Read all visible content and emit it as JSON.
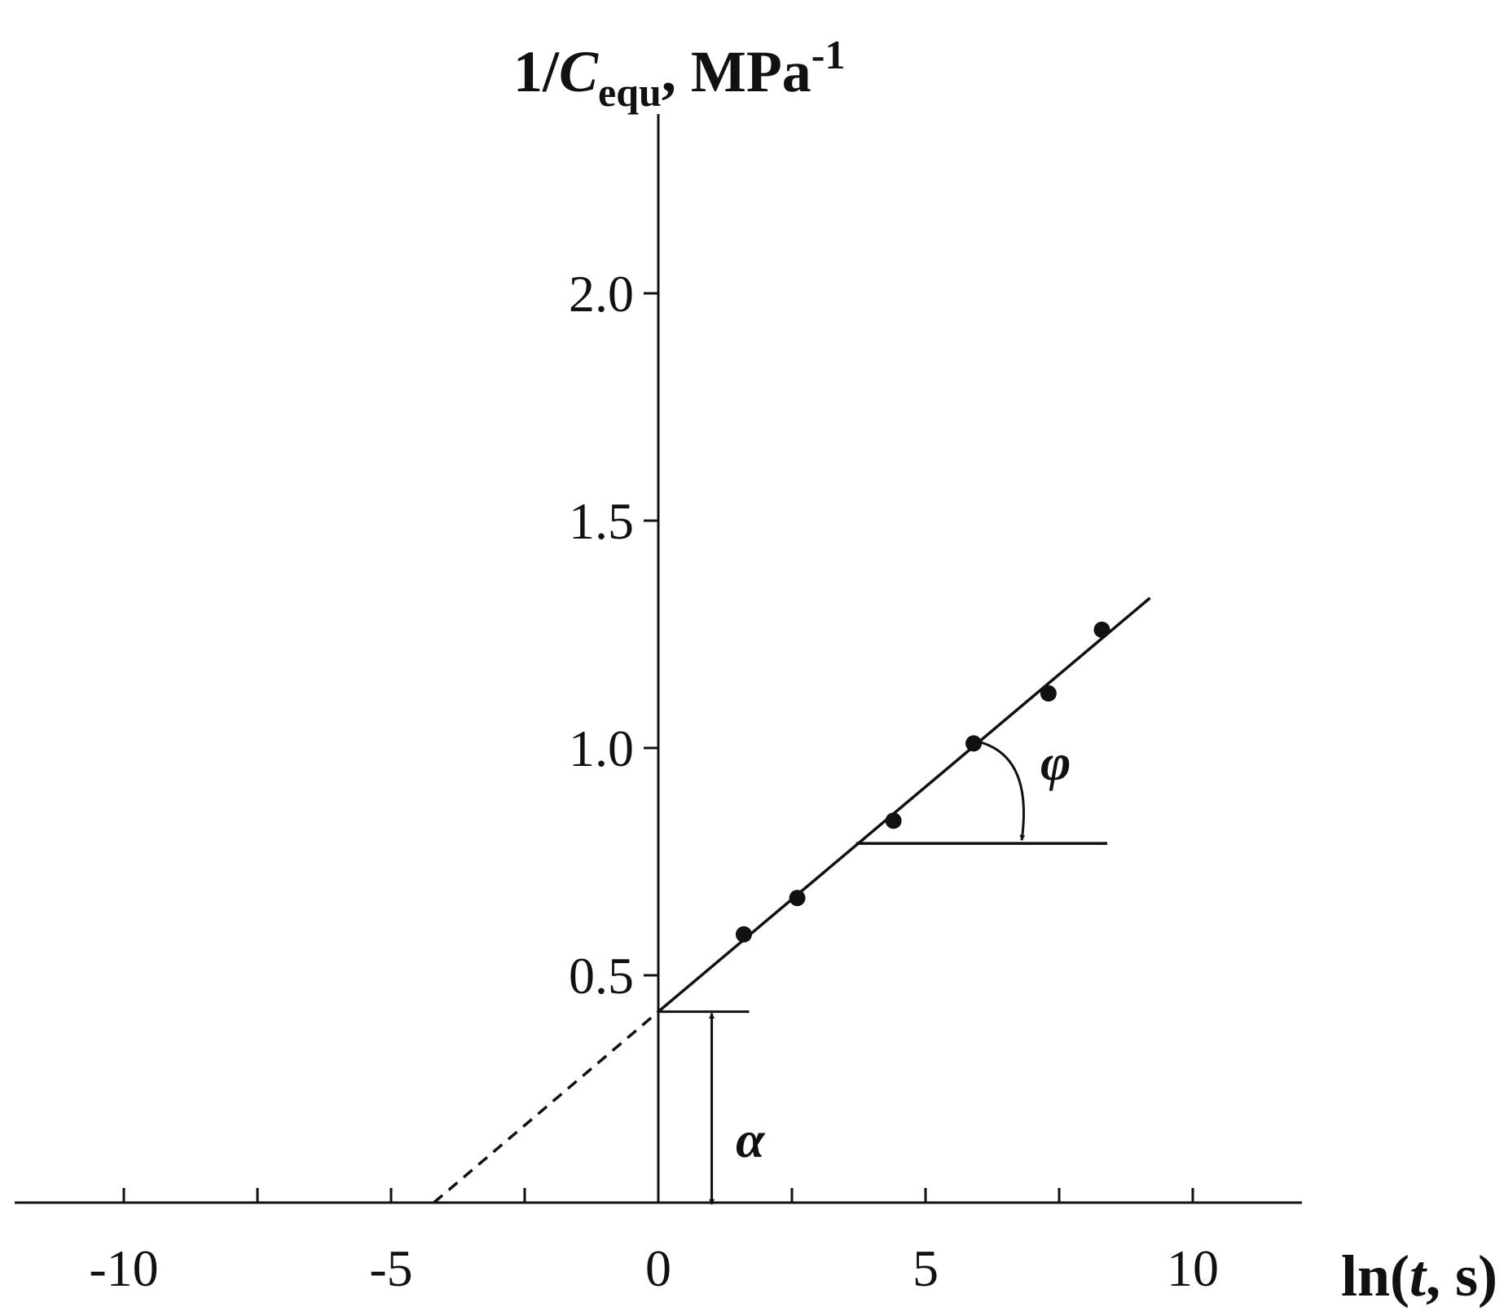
{
  "chart_data": {
    "type": "scatter",
    "ylabel": {
      "prefix": "1/",
      "var": "C",
      "sub": "equ",
      "unit": ", MPa",
      "sup": "-1"
    },
    "xlabel": {
      "prefix": "ln(",
      "var": "t",
      "suffix": ", s)"
    },
    "xlim": [
      -12,
      12
    ],
    "ylim": [
      0,
      2.6
    ],
    "x_ticks": [
      -10,
      -7.5,
      -5,
      -2.5,
      0,
      2.5,
      5,
      7.5,
      10
    ],
    "x_tick_labels": [
      {
        "value": -10,
        "text": "-10"
      },
      {
        "value": -5,
        "text": "-5"
      },
      {
        "value": 0,
        "text": "0"
      },
      {
        "value": 5,
        "text": "5"
      },
      {
        "value": 10,
        "text": "10"
      }
    ],
    "y_ticks": [
      0.5,
      1.0,
      1.5,
      2.0
    ],
    "y_tick_labels": [
      "0.5",
      "1.0",
      "1.5",
      "2.0"
    ],
    "points": [
      {
        "x": 1.6,
        "y": 0.59
      },
      {
        "x": 2.6,
        "y": 0.67
      },
      {
        "x": 4.4,
        "y": 0.84
      },
      {
        "x": 5.9,
        "y": 1.01
      },
      {
        "x": 7.3,
        "y": 1.12
      },
      {
        "x": 8.3,
        "y": 1.26
      }
    ],
    "fit_line": {
      "x0": 0,
      "y0": 0.42,
      "x1": 9.2,
      "y1": 1.33
    },
    "extrapolation": {
      "x0": -4.2,
      "y0": 0,
      "x1": 0,
      "y1": 0.42
    },
    "intercept_marker": {
      "x0": 0,
      "x1": 1.7,
      "y": 0.42
    },
    "alpha_arrow": {
      "x": 1.0,
      "y0": 0,
      "y1": 0.42
    },
    "phi_baseline": {
      "x0": 3.7,
      "x1": 8.4,
      "y": 0.79
    },
    "annotations": [
      {
        "key": "alpha",
        "text": "α"
      },
      {
        "key": "phi",
        "text": "φ"
      }
    ],
    "grid": false
  }
}
